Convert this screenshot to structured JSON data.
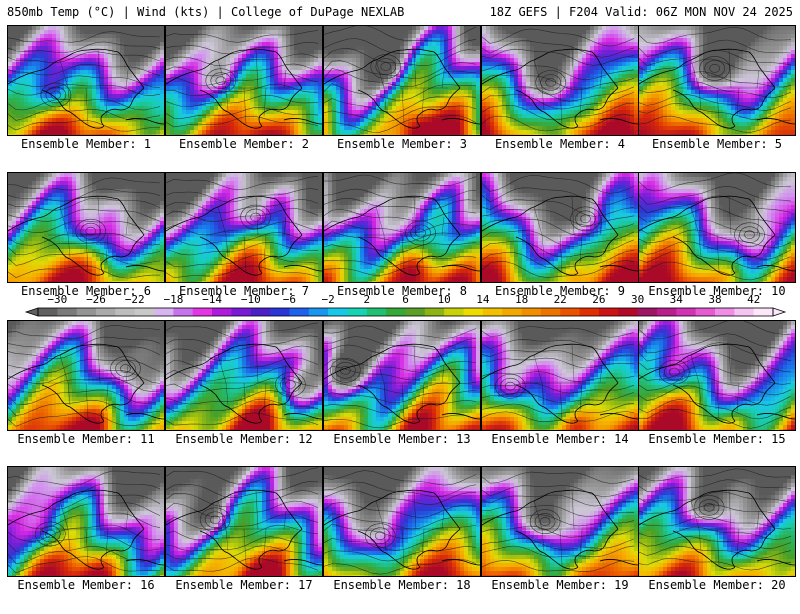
{
  "header": {
    "left": "850mb Temp (°C) | Wind (kts) | College of DuPage NEXLAB",
    "right": "18Z GEFS | F204 Valid: 06Z MON NOV 24 2025"
  },
  "colorbar": {
    "tick_labels": [
      "−30",
      "−26",
      "−22",
      "−18",
      "−14",
      "−10",
      "−6",
      "−2",
      "2",
      "6",
      "10",
      "14",
      "18",
      "22",
      "26",
      "30",
      "34",
      "38",
      "42"
    ],
    "tick_values": [
      -30,
      -26,
      -22,
      -18,
      -14,
      -10,
      -6,
      -2,
      2,
      6,
      10,
      14,
      18,
      22,
      26,
      30,
      34,
      38,
      42
    ],
    "min": -32,
    "max": 44,
    "colors": [
      "#606060",
      "#7a7a7a",
      "#949494",
      "#aaaaaa",
      "#bdbdbd",
      "#c8c8c8",
      "#d8b4f0",
      "#c873ee",
      "#e235e6",
      "#b01adc",
      "#7a1ad8",
      "#4b1ec8",
      "#2b36d8",
      "#1e62ec",
      "#1a96f0",
      "#18c8e8",
      "#18d2b4",
      "#20c070",
      "#36a838",
      "#5aa028",
      "#8cb414",
      "#c8d20a",
      "#eedc00",
      "#f2c000",
      "#f2a800",
      "#f09000",
      "#ee7400",
      "#ea5400",
      "#e03000",
      "#cc1414",
      "#b40a28",
      "#a01464",
      "#b81e8c",
      "#d232b4",
      "#e65ad2",
      "#f08ee6",
      "#f6c4f2",
      "#fce6fa"
    ]
  },
  "members": [
    {
      "label": "Ensemble Member: 1",
      "member": 1
    },
    {
      "label": "Ensemble Member: 2",
      "member": 2
    },
    {
      "label": "Ensemble Member: 3",
      "member": 3
    },
    {
      "label": "Ensemble Member: 4",
      "member": 4
    },
    {
      "label": "Ensemble Member: 5",
      "member": 5
    },
    {
      "label": "Ensemble Member: 6",
      "member": 6
    },
    {
      "label": "Ensemble Member: 7",
      "member": 7
    },
    {
      "label": "Ensemble Member: 8",
      "member": 8
    },
    {
      "label": "Ensemble Member: 9",
      "member": 9
    },
    {
      "label": "Ensemble Member: 10",
      "member": 10
    },
    {
      "label": "Ensemble Member: 11",
      "member": 11
    },
    {
      "label": "Ensemble Member: 12",
      "member": 12
    },
    {
      "label": "Ensemble Member: 13",
      "member": 13
    },
    {
      "label": "Ensemble Member: 14",
      "member": 14
    },
    {
      "label": "Ensemble Member: 15",
      "member": 15
    },
    {
      "label": "Ensemble Member: 16",
      "member": 16
    },
    {
      "label": "Ensemble Member: 17",
      "member": 17
    },
    {
      "label": "Ensemble Member: 18",
      "member": 18
    },
    {
      "label": "Ensemble Member: 19",
      "member": 19
    },
    {
      "label": "Ensemble Member: 20",
      "member": 20
    }
  ]
}
